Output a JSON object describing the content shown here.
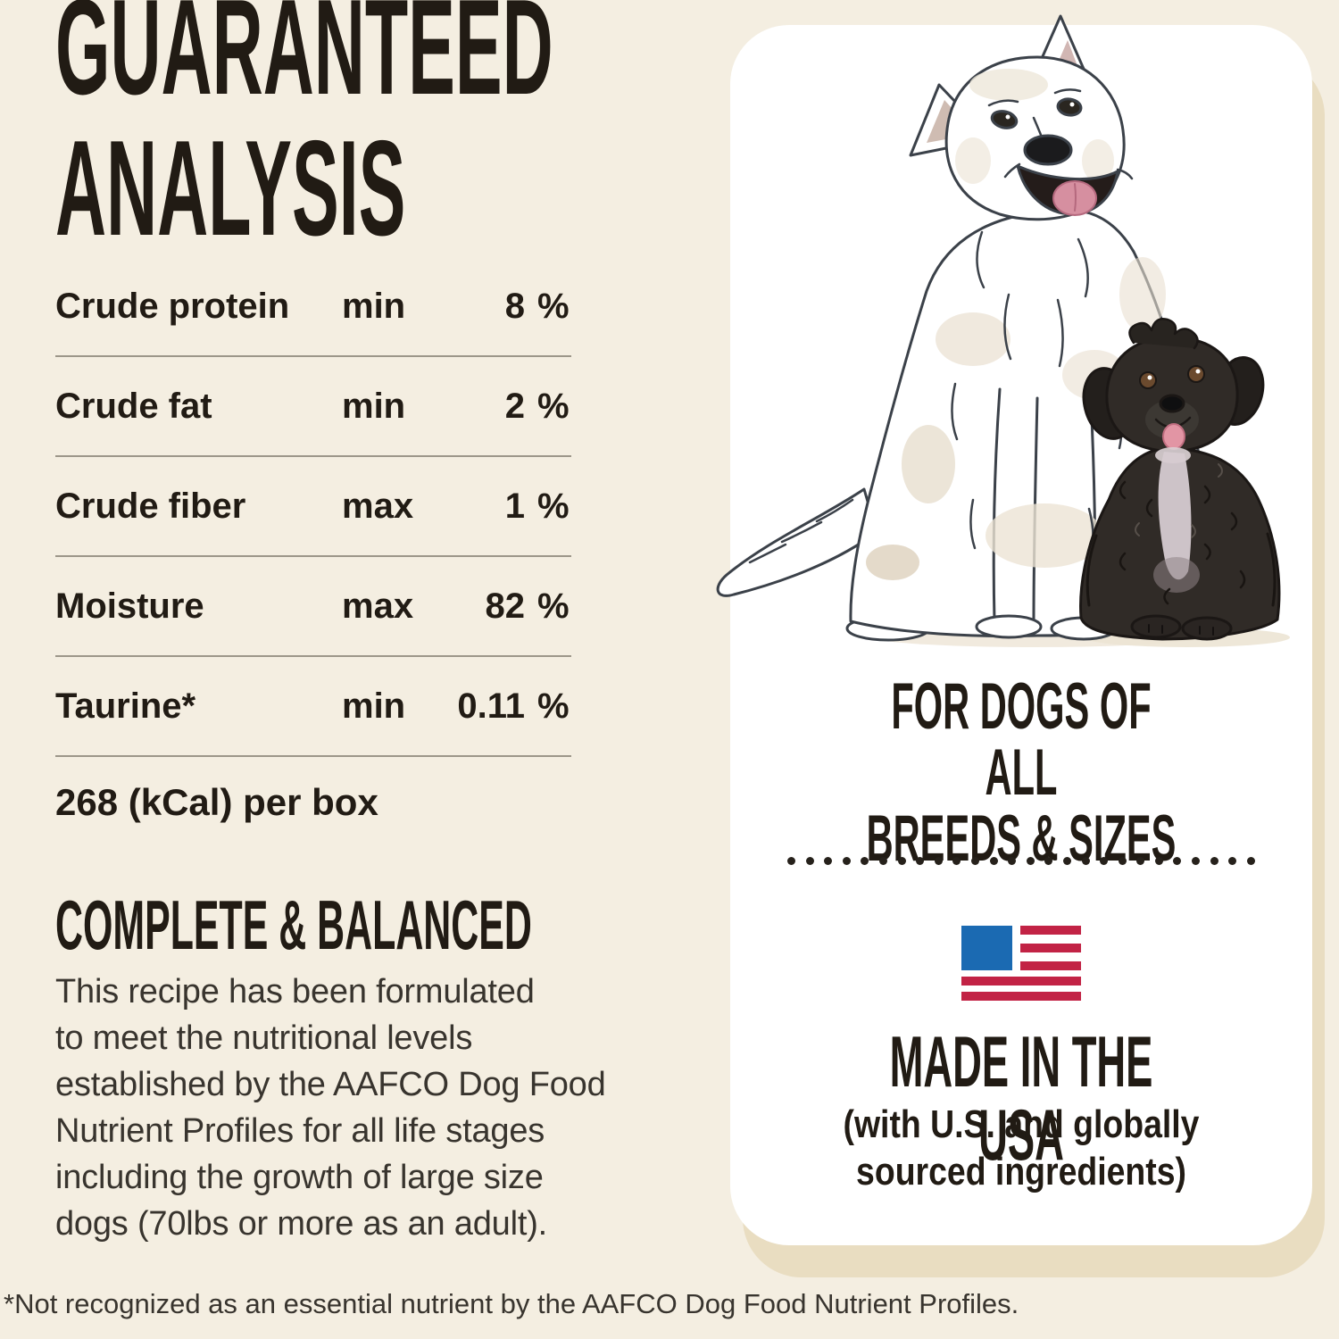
{
  "colors": {
    "bg": "#f4eee1",
    "ink": "#211b14",
    "card": "#ffffff",
    "shadow": "#e9ddc1",
    "line": "#9c9689",
    "text": "#38342e",
    "dot": "#26211b",
    "flag-blue": "#1b6ab2",
    "flag-red": "#c22345"
  },
  "analysis": {
    "title": "GUARANTEED\nANALYSIS",
    "table": {
      "rows": [
        {
          "label": "Crude protein",
          "qualifier": "min",
          "value": "8",
          "unit": "%"
        },
        {
          "label": "Crude fat",
          "qualifier": "min",
          "value": "2",
          "unit": "%"
        },
        {
          "label": "Crude fiber",
          "qualifier": "max",
          "value": "1",
          "unit": "%"
        },
        {
          "label": "Moisture",
          "qualifier": "max",
          "value": "82",
          "unit": "%"
        },
        {
          "label": "Taurine*",
          "qualifier": "min",
          "value": "0.11",
          "unit": "%"
        }
      ]
    },
    "calorie_line": "268 (kCal) per box",
    "subtitle": "COMPLETE & BALANCED",
    "body": "This recipe has been formulated\nto meet the nutritional levels\nestablished by the AAFCO Dog Food\nNutrient Profiles for all life stages\nincluding the growth of large size\ndogs (70lbs or more as an adult)."
  },
  "card": {
    "illustration": "two-dogs-watercolor-illustration",
    "headline": "FOR DOGS OF ALL\nBREEDS & SIZES",
    "divider_dot_count": 26,
    "flag_icon": "usa-flag-icon",
    "made_in": "MADE IN THE USA",
    "made_in_note": "(with U.S. and globally\nsourced ingredients)"
  },
  "footnote": "*Not recognized as an essential nutrient by the AAFCO Dog Food Nutrient Profiles."
}
